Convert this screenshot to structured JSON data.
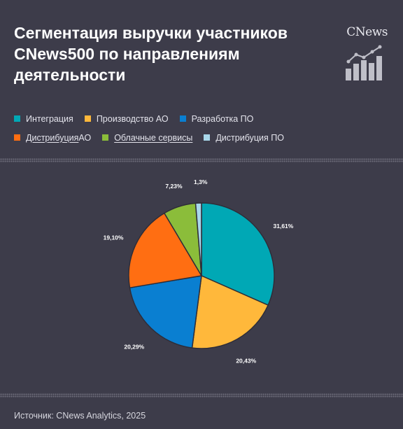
{
  "title_lines": [
    "Сегментация выручки участников",
    "CNews500 по направлениям",
    "деятельности"
  ],
  "logo": {
    "text": "CNews",
    "icon": "growth-chart-icon"
  },
  "legend": {
    "row1": [
      {
        "label": "Интеграция",
        "color": "#00a8b5"
      },
      {
        "label": "Производство АО",
        "color": "#ffb83b"
      },
      {
        "label": "Разработка ПО",
        "color": "#0a7fd1"
      }
    ],
    "row2": [
      {
        "label_underlined": "Дистрибуция",
        "label_rest": " АО",
        "color": "#ff6e12"
      },
      {
        "label_underlined": "Облачные сервисы",
        "label_rest": "",
        "color": "#8bbd3a"
      },
      {
        "label": "Дистрибуция ПО",
        "color": "#a8d7ea"
      }
    ]
  },
  "chart_data": {
    "type": "pie",
    "title": "Сегментация выручки участников CNews500 по направлениям деятельности",
    "slices": [
      {
        "name": "Интеграция",
        "value": 31.61,
        "label": "31,61%",
        "color": "#00a8b5"
      },
      {
        "name": "Производство АО",
        "value": 20.43,
        "label": "20,43%",
        "color": "#ffb83b"
      },
      {
        "name": "Разработка ПО",
        "value": 20.29,
        "label": "20,29%",
        "color": "#0a7fd1"
      },
      {
        "name": "Дистрибуция АО",
        "value": 19.1,
        "label": "19,10%",
        "color": "#ff6e12"
      },
      {
        "name": "Облачные сервисы",
        "value": 7.23,
        "label": "7,23%",
        "color": "#8bbd3a"
      },
      {
        "name": "Дистрибуция ПО",
        "value": 1.3,
        "label": "1,3%",
        "color": "#a8d7ea"
      }
    ],
    "start": "12 o'clock",
    "direction": "clockwise",
    "legend_position": "top"
  },
  "source": "Источник: CNews Analytics, 2025"
}
